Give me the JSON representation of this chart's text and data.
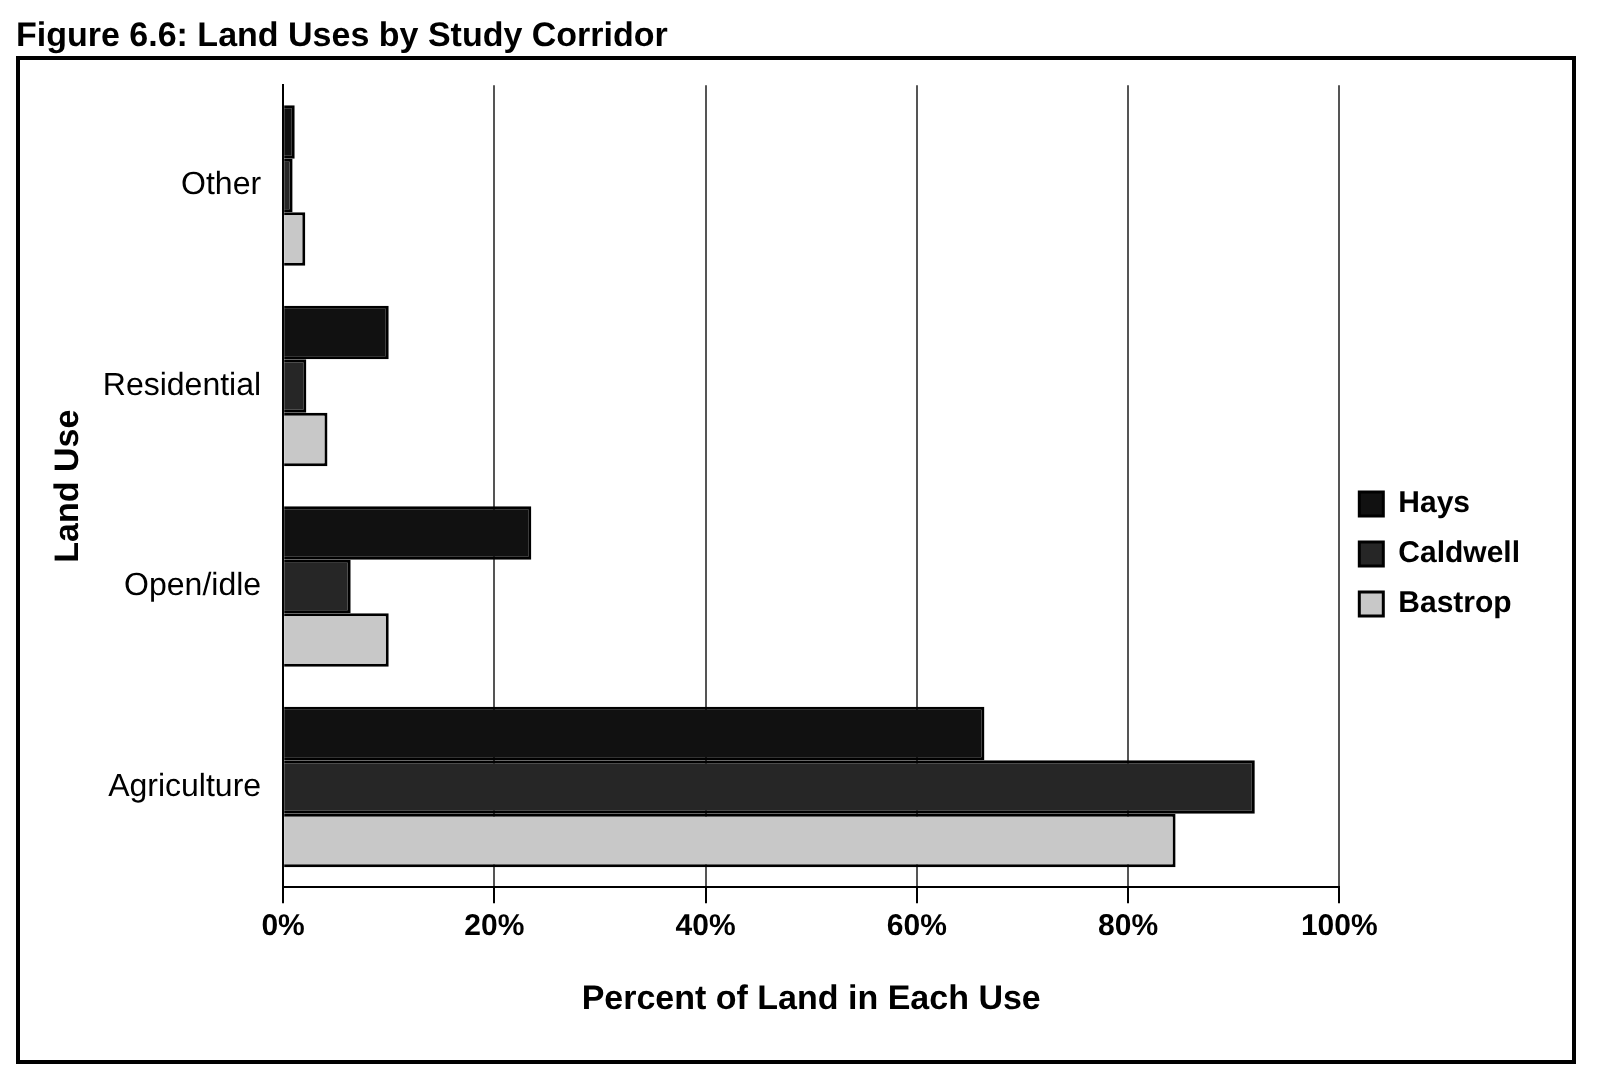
{
  "chart_data": {
    "type": "bar",
    "orientation": "horizontal",
    "title": "Figure 6.6: Land Uses by Study Corridor",
    "xlabel": "Percent of Land in Each Use",
    "ylabel": "Land Use",
    "categories": [
      "Other",
      "Residential",
      "Open/idle",
      "Agriculture"
    ],
    "series": [
      {
        "name": "Hays",
        "color": "#111111",
        "values": [
          1.1,
          10,
          23.5,
          66.4
        ]
      },
      {
        "name": "Caldwell",
        "color": "#262626",
        "values": [
          0.9,
          2.2,
          6.4,
          92
        ]
      },
      {
        "name": "Bastrop",
        "color": "#c8c8c8",
        "values": [
          2.1,
          4.2,
          10,
          84.5
        ]
      }
    ],
    "xlim": [
      0,
      100
    ],
    "xticks": [
      {
        "value": 0,
        "label": "0%"
      },
      {
        "value": 20,
        "label": "20%"
      },
      {
        "value": 40,
        "label": "40%"
      },
      {
        "value": 60,
        "label": "60%"
      },
      {
        "value": 80,
        "label": "80%"
      },
      {
        "value": 100,
        "label": "100%"
      }
    ],
    "grid": "x",
    "legend": "right"
  }
}
